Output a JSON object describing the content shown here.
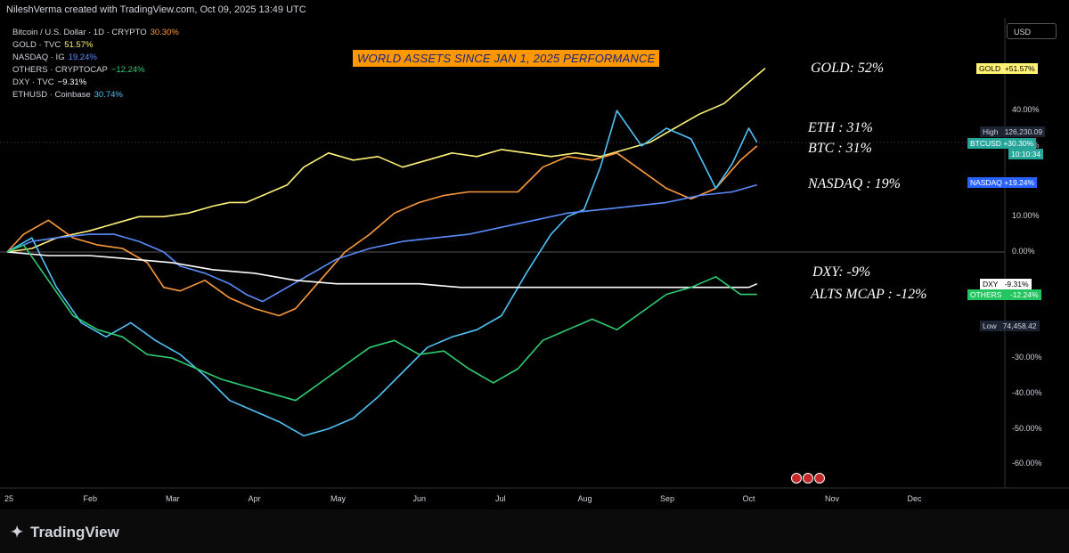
{
  "header": {
    "text": "NileshVerma created with TradingView.com, Oct 09, 2025 13:49 UTC"
  },
  "legend": [
    {
      "label": "Bitcoin / U.S. Dollar · 1D · CRYPTO",
      "value": "30.30%",
      "color": "#ff9a3c"
    },
    {
      "label": "GOLD · TVC",
      "value": "51.57%",
      "color": "#fff176"
    },
    {
      "label": "NASDAQ · IG",
      "value": "19.24%",
      "color": "#5b8cff"
    },
    {
      "label": "OTHERS · CRYPTOCAP",
      "value": "−12.24%",
      "color": "#2ecc71"
    },
    {
      "label": "DXY · TVC",
      "value": "−9.31%",
      "color": "#ffffff"
    },
    {
      "label": "ETHUSD · Coinbase",
      "value": "30.74%",
      "color": "#4fc3f7"
    }
  ],
  "annotations": {
    "gold": "GOLD: 52%",
    "eth": "ETH : 31%",
    "btc": "BTC : 31%",
    "nasdaq": "NASDAQ : 19%",
    "dxy": "DXY: -9%",
    "alts": "ALTS MCAP : -12%"
  },
  "currency": "USD",
  "price_badges": {
    "gold": {
      "label": "GOLD",
      "value": "+51.57%",
      "bg": "#fff176",
      "fg": "#000000"
    },
    "high": {
      "label": "High",
      "value": "126,230.09"
    },
    "btc": {
      "label": "BTCUSD",
      "value": "+30.30%",
      "time": "10:10:34",
      "bg": "#26a69a"
    },
    "nasdaq": {
      "label": "NASDAQ",
      "value": "+19.24%",
      "bg": "#2962ff"
    },
    "dxy": {
      "label": "DXY",
      "value": "-9.31%",
      "bg": "#ffffff",
      "fg": "#000000"
    },
    "others": {
      "label": "OTHERS",
      "value": "-12.24%",
      "bg": "#22c55e"
    },
    "low": {
      "label": "Low",
      "value": "74,458.42"
    }
  },
  "logo": "TradingView",
  "chart_data": {
    "type": "line",
    "title": "WORLD ASSETS SINCE JAN 1, 2025 PERFORMANCE",
    "x_ticks": [
      "25",
      "Feb",
      "Mar",
      "Apr",
      "May",
      "Jun",
      "Jul",
      "Aug",
      "Sep",
      "Oct",
      "Nov",
      "Dec"
    ],
    "y_ticks": [
      "40.00%",
      "30.00%",
      "10.00%",
      "0.00%",
      "-30.00%",
      "-40.00%",
      "-50.00%",
      "-60.00%"
    ],
    "y_tick_values": [
      40,
      30,
      10,
      0,
      -30,
      -40,
      -50,
      -60
    ],
    "ylim": [
      -62,
      60
    ],
    "xlim_months": [
      0,
      11.5
    ],
    "series": [
      {
        "name": "GOLD",
        "color": "#fff176",
        "x": [
          0,
          0.3,
          0.6,
          1,
          1.3,
          1.6,
          1.9,
          2.2,
          2.5,
          2.7,
          2.9,
          3.1,
          3.4,
          3.6,
          3.9,
          4.2,
          4.5,
          4.8,
          5.1,
          5.4,
          5.7,
          6,
          6.3,
          6.6,
          6.9,
          7.2,
          7.5,
          7.8,
          8.1,
          8.4,
          8.7,
          9,
          9.2
        ],
        "y": [
          0,
          1,
          4,
          6,
          8,
          10,
          10,
          11,
          13,
          14,
          14,
          16,
          19,
          24,
          28,
          26,
          27,
          24,
          26,
          28,
          27,
          29,
          28,
          27,
          28,
          27,
          29,
          31,
          35,
          39,
          42,
          48,
          52
        ]
      },
      {
        "name": "BTC",
        "color": "#ff9a3c",
        "x": [
          0,
          0.2,
          0.5,
          0.8,
          1.1,
          1.4,
          1.7,
          1.9,
          2.1,
          2.4,
          2.7,
          3,
          3.3,
          3.5,
          3.8,
          4.1,
          4.4,
          4.7,
          5,
          5.3,
          5.6,
          5.9,
          6.2,
          6.5,
          6.8,
          7.1,
          7.4,
          7.7,
          8,
          8.3,
          8.6,
          8.9,
          9.1
        ],
        "y": [
          0,
          5,
          9,
          4,
          2,
          1,
          -3,
          -10,
          -11,
          -8,
          -13,
          -16,
          -18,
          -16,
          -8,
          0,
          5,
          11,
          14,
          16,
          17,
          17,
          17,
          24,
          27,
          26,
          28,
          23,
          18,
          15,
          18,
          26,
          30
        ]
      },
      {
        "name": "ETH",
        "color": "#4fc3f7",
        "x": [
          0,
          0.3,
          0.6,
          0.9,
          1.2,
          1.5,
          1.8,
          2.1,
          2.4,
          2.7,
          3,
          3.3,
          3.6,
          3.9,
          4.2,
          4.5,
          4.8,
          5.1,
          5.4,
          5.7,
          6,
          6.3,
          6.6,
          6.8,
          7,
          7.2,
          7.4,
          7.7,
          8,
          8.3,
          8.6,
          8.8,
          9,
          9.1
        ],
        "y": [
          0,
          4,
          -10,
          -20,
          -24,
          -20,
          -25,
          -29,
          -35,
          -42,
          -45,
          -48,
          -52,
          -50,
          -47,
          -41,
          -34,
          -27,
          -24,
          -22,
          -18,
          -6,
          5,
          10,
          12,
          24,
          40,
          30,
          35,
          32,
          18,
          25,
          35,
          31
        ]
      },
      {
        "name": "NASDAQ",
        "color": "#5b8cff",
        "x": [
          0,
          0.3,
          0.6,
          1,
          1.3,
          1.6,
          1.9,
          2.1,
          2.4,
          2.7,
          2.9,
          3.1,
          3.4,
          3.7,
          4,
          4.4,
          4.8,
          5.2,
          5.6,
          6,
          6.4,
          6.8,
          7.2,
          7.6,
          8,
          8.4,
          8.8,
          9.1
        ],
        "y": [
          0,
          3,
          4,
          5,
          5,
          3,
          0,
          -4,
          -6,
          -9,
          -12,
          -14,
          -10,
          -6,
          -2,
          1,
          3,
          4,
          5,
          7,
          9,
          11,
          12,
          13,
          14,
          16,
          17,
          19
        ]
      },
      {
        "name": "DXY",
        "color": "#ffffff",
        "x": [
          0,
          0.5,
          1,
          1.5,
          2,
          2.5,
          3,
          3.5,
          4,
          4.5,
          5,
          5.5,
          6,
          6.5,
          7,
          7.5,
          8,
          8.5,
          9,
          9.1
        ],
        "y": [
          0,
          -1,
          -1,
          -2,
          -3,
          -5,
          -6,
          -8,
          -9,
          -9,
          -9,
          -10,
          -10,
          -10,
          -10,
          -10,
          -10,
          -10,
          -10,
          -9
        ]
      },
      {
        "name": "OTHERS",
        "color": "#2ecc71",
        "x": [
          0,
          0.2,
          0.5,
          0.8,
          1.1,
          1.4,
          1.7,
          2,
          2.3,
          2.6,
          2.9,
          3.2,
          3.5,
          3.8,
          4.1,
          4.4,
          4.7,
          5,
          5.3,
          5.6,
          5.9,
          6.2,
          6.5,
          6.8,
          7.1,
          7.4,
          7.7,
          8,
          8.3,
          8.6,
          8.9,
          9.1
        ],
        "y": [
          0,
          2,
          -8,
          -18,
          -22,
          -24,
          -29,
          -30,
          -33,
          -36,
          -38,
          -40,
          -42,
          -37,
          -32,
          -27,
          -25,
          -29,
          -28,
          -33,
          -37,
          -33,
          -25,
          -22,
          -19,
          -22,
          -17,
          -12,
          -10,
          -7,
          -12,
          -12
        ]
      }
    ]
  }
}
